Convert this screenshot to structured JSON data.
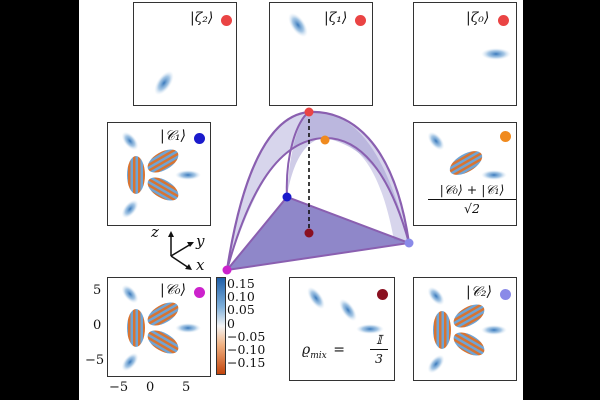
{
  "panels": {
    "zeta2": {
      "label": "|ζ₂⟩",
      "dot_color": "#ea4444"
    },
    "zeta1": {
      "label": "|ζ₁⟩",
      "dot_color": "#ea4444"
    },
    "zeta0": {
      "label": "|ζ₀⟩",
      "dot_color": "#ea4444"
    },
    "c1": {
      "label": "|𝒞₁⟩",
      "dot_color": "#1a1acc"
    },
    "superpos": {
      "numerator": "|𝒞₀⟩ + |𝒞₁⟩",
      "denominator": "√2",
      "dot_color": "#f08a1e"
    },
    "c0": {
      "label": "|𝒞₀⟩",
      "dot_color": "#cc22cc"
    },
    "mix": {
      "lhs": "ϱ",
      "sub": "mix",
      "eq": "=",
      "numerator": "𝕀",
      "denominator": "3",
      "dot_color": "#8a1020"
    },
    "c2": {
      "label": "|𝒞₂⟩",
      "dot_color": "#8a8ae8"
    }
  },
  "axes_ticks": {
    "y": [
      "5",
      "0",
      "−5"
    ],
    "x": [
      "−5",
      "0",
      "5"
    ]
  },
  "colorbar": {
    "ticks": [
      "0.15",
      "0.10",
      "0.05",
      "0",
      "−0.05",
      "−0.10",
      "−0.15"
    ],
    "top_color": "#1f5fa8",
    "bottom_color": "#c2440c"
  },
  "triad": {
    "x": "x",
    "y": "y",
    "z": "z"
  }
}
